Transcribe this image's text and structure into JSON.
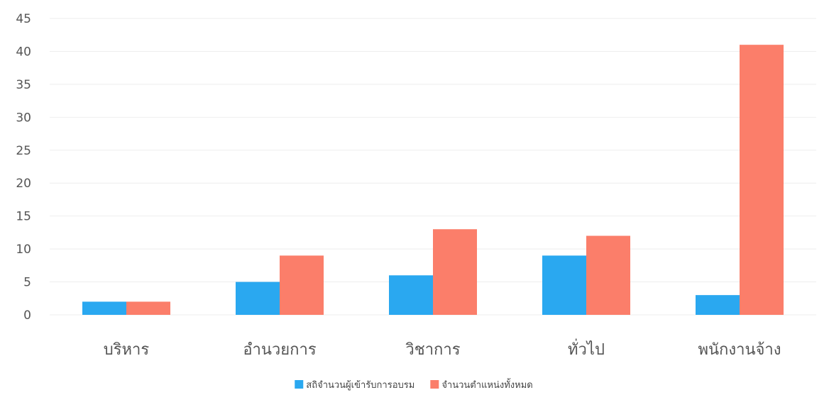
{
  "chart_data": {
    "type": "bar",
    "title": "",
    "xlabel": "",
    "ylabel": "",
    "categories": [
      "บริหาร",
      "อำนวยการ",
      "วิชาการ",
      "ทั่วไป",
      "พนักงานจ้าง"
    ],
    "series": [
      {
        "name": "สถิจำนวนผู้เข้ารับการอบรม",
        "values": [
          2,
          5,
          6,
          9,
          3
        ],
        "color": "#2aa8f0"
      },
      {
        "name": "จำนวนตำแหน่งทั้งหมด",
        "values": [
          2,
          9,
          13,
          12,
          41
        ],
        "color": "#fb7e6a"
      }
    ],
    "ylim": [
      0,
      45
    ],
    "yticks": [
      0,
      5,
      10,
      15,
      20,
      25,
      30,
      35,
      40,
      45
    ],
    "grid": true,
    "legend": "bottom-center"
  }
}
